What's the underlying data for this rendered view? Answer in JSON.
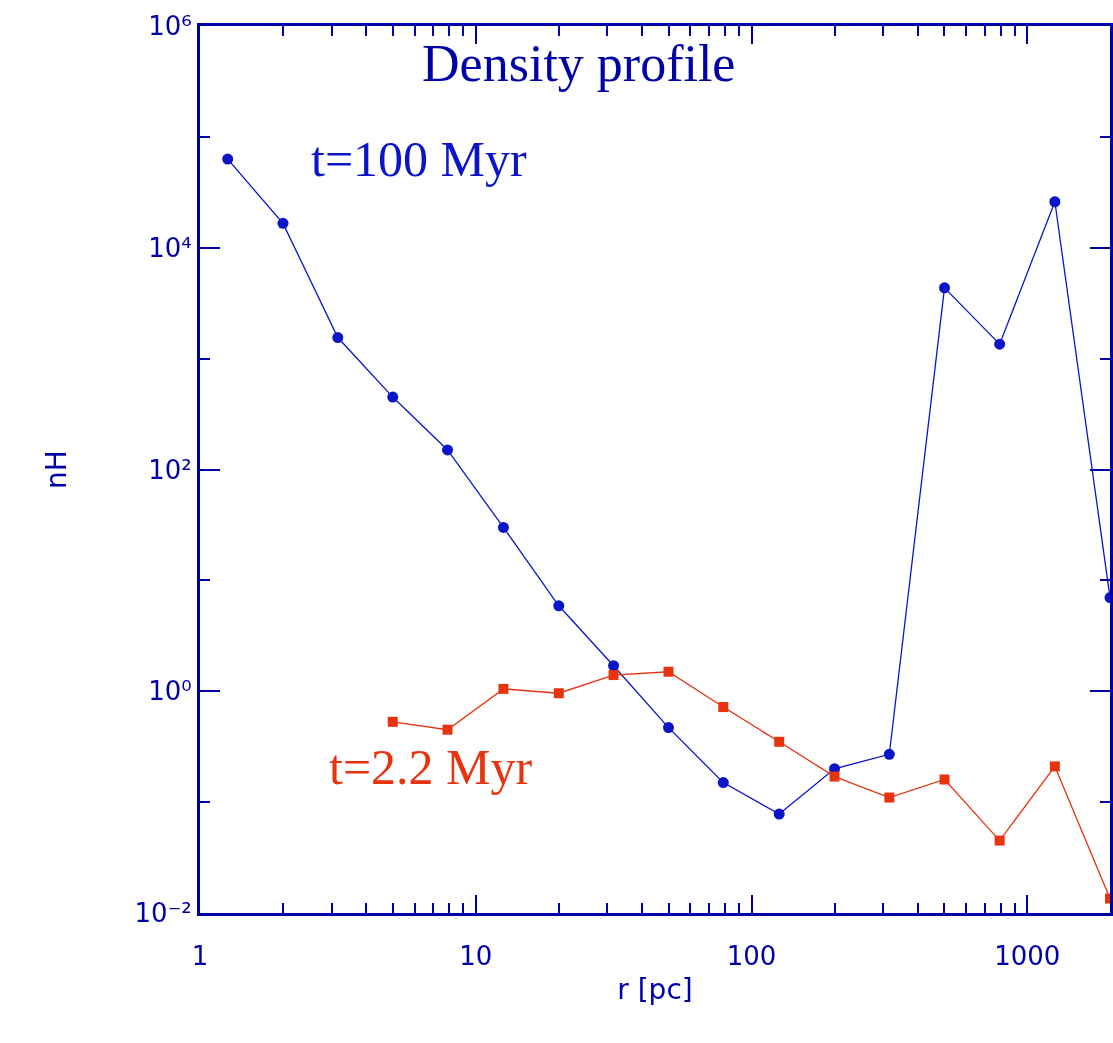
{
  "chart_data": {
    "type": "line",
    "title": "Density profile",
    "xlabel": "r [pc]",
    "ylabel": "nH",
    "log": "xy",
    "legend": false,
    "xlim": [
      1,
      1995
    ],
    "ylim": [
      0.01,
      1000000
    ],
    "xticks": [
      1,
      {
        "value": 2,
        "label": null
      },
      {
        "value": 3,
        "label": null
      },
      {
        "value": 4,
        "label": null
      },
      {
        "value": 5,
        "label": null
      },
      {
        "value": 6,
        "label": null
      },
      {
        "value": 7,
        "label": null
      },
      {
        "value": 8,
        "label": null
      },
      {
        "value": 9,
        "label": null
      },
      10,
      {
        "value": 20,
        "label": null
      },
      {
        "value": 30,
        "label": null
      },
      {
        "value": 40,
        "label": null
      },
      {
        "value": 50,
        "label": null
      },
      {
        "value": 60,
        "label": null
      },
      {
        "value": 70,
        "label": null
      },
      {
        "value": 80,
        "label": null
      },
      {
        "value": 90,
        "label": null
      },
      100,
      {
        "value": 200,
        "label": null
      },
      {
        "value": 300,
        "label": null
      },
      {
        "value": 400,
        "label": null
      },
      {
        "value": 500,
        "label": null
      },
      {
        "value": 600,
        "label": null
      },
      {
        "value": 700,
        "label": null
      },
      {
        "value": 800,
        "label": null
      },
      {
        "value": 900,
        "label": null
      },
      1000
    ],
    "yticks": [
      {
        "value": 0.01,
        "label": "10⁻²"
      },
      {
        "value": 0.1,
        "label": null
      },
      {
        "value": 1,
        "label": "10⁰"
      },
      {
        "value": 10,
        "label": null
      },
      {
        "value": 100,
        "label": "10²"
      },
      {
        "value": 1000,
        "label": null
      },
      {
        "value": 10000,
        "label": "10⁴"
      },
      {
        "value": 100000,
        "label": null
      },
      {
        "value": 1000000,
        "label": "10⁶"
      }
    ],
    "series": [
      {
        "name": "t=100 Myr",
        "color": "#0a14c8",
        "marker": "circle",
        "x": [
          1.26,
          2,
          3.16,
          5,
          7.9,
          12.6,
          20,
          31.6,
          50,
          79,
          126,
          200,
          316,
          501,
          794,
          1259,
          1995
        ],
        "values": [
          63000,
          16600,
          1550,
          450,
          150,
          30,
          5.9,
          1.7,
          0.47,
          0.15,
          0.078,
          0.2,
          0.27,
          4350,
          1350,
          26000,
          7
        ]
      },
      {
        "name": "t=2.2 Myr",
        "color": "#e8330f",
        "marker": "square",
        "x": [
          5,
          7.9,
          12.6,
          20,
          31.6,
          50,
          79,
          126,
          200,
          316,
          501,
          794,
          1259,
          1995
        ],
        "values": [
          0.53,
          0.45,
          1.05,
          0.96,
          1.4,
          1.5,
          0.72,
          0.35,
          0.17,
          0.11,
          0.16,
          0.045,
          0.21,
          0.0135
        ]
      }
    ]
  }
}
